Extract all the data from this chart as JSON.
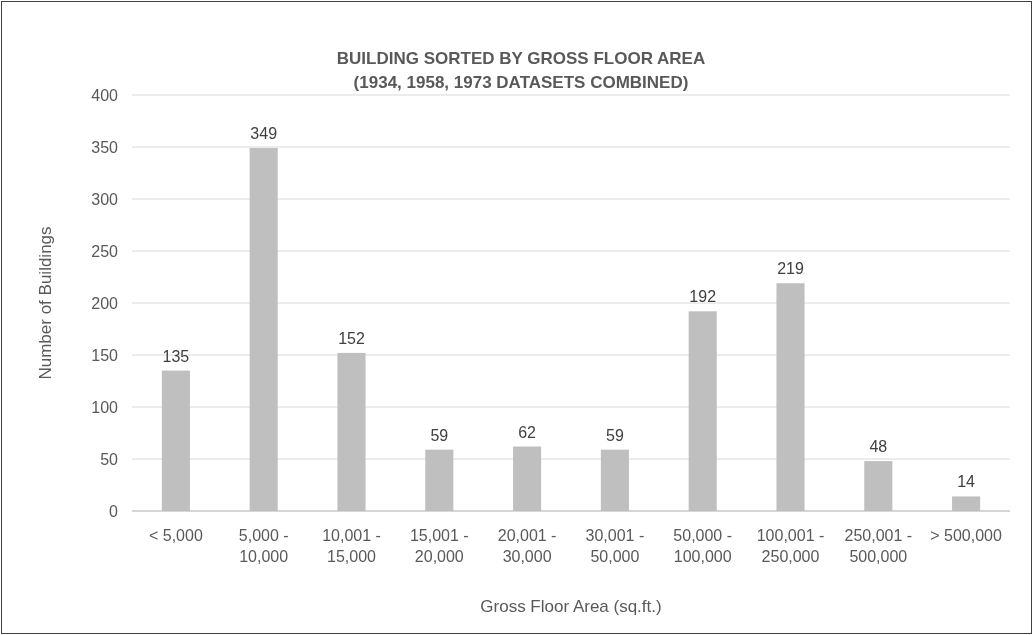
{
  "chart_data": {
    "type": "bar",
    "title": "BUILDING SORTED BY GROSS FLOOR AREA",
    "subtitle": "(1934, 1958, 1973 DATASETS COMBINED)",
    "xlabel": "Gross Floor Area (sq.ft.)",
    "ylabel": "Number of Buildings",
    "categories": [
      "< 5,000",
      "5,000 - 10,000",
      "10,001 - 15,000",
      "15,001 - 20,000",
      "20,001 - 30,000",
      "30,001 - 50,000",
      "50,000 - 100,000",
      "100,001 - 250,000",
      "250,001 - 500,000",
      "> 500,000"
    ],
    "values": [
      135,
      349,
      152,
      59,
      62,
      59,
      192,
      219,
      48,
      14
    ],
    "color": "#bfbfbf",
    "ylim": [
      0,
      400
    ],
    "yticks": [
      0,
      50,
      100,
      150,
      200,
      250,
      300,
      350,
      400
    ],
    "grid": "y",
    "data_labels": true
  }
}
